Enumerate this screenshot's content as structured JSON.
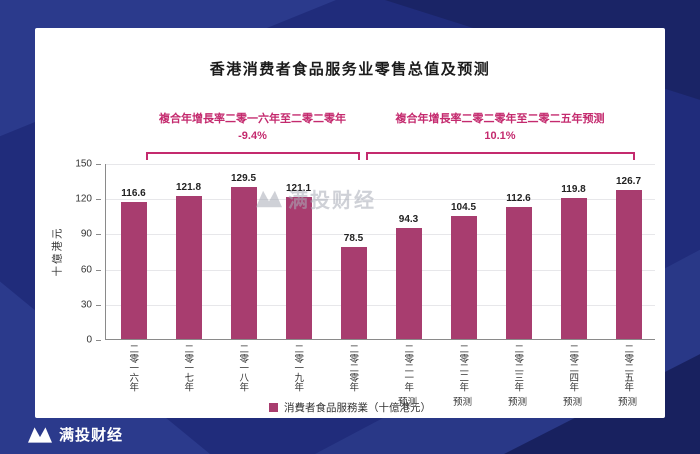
{
  "page": {
    "background_color": "#202c7b",
    "card_color": "#ffffff"
  },
  "brand": {
    "name": "满投财经",
    "watermark_text": "满投财经"
  },
  "chart_data": {
    "type": "bar",
    "title": "香港消费者食品服务业零售总值及预测",
    "ylabel": "十億港元",
    "ylim": [
      0,
      150
    ],
    "yticks": [
      150,
      120,
      90,
      60,
      30,
      0
    ],
    "categories": [
      {
        "year": "二零一六年",
        "sub": ""
      },
      {
        "year": "二零一七年",
        "sub": ""
      },
      {
        "year": "二零一八年",
        "sub": ""
      },
      {
        "year": "二零一九年",
        "sub": ""
      },
      {
        "year": "二零二零年",
        "sub": ""
      },
      {
        "year": "二零二一年",
        "sub": "预测"
      },
      {
        "year": "二零二二年",
        "sub": "预测"
      },
      {
        "year": "二零二三年",
        "sub": "预测"
      },
      {
        "year": "二零二四年",
        "sub": "预测"
      },
      {
        "year": "二零二五年",
        "sub": "预测"
      }
    ],
    "values": [
      116.6,
      121.8,
      129.5,
      121.1,
      78.5,
      94.3,
      104.5,
      112.6,
      119.8,
      126.7
    ],
    "bar_color": "#a83d6f",
    "annotation_color": "#c42a6e",
    "legend": "消費者食品服務業（十億港元）",
    "legend_position": "bottom",
    "grid": true,
    "annotations": [
      {
        "text": "複合年增長率二零一六年至二零二零年",
        "value": "-9.4%",
        "span_start": 0,
        "span_end": 4
      },
      {
        "text": "複合年增長率二零二零年至二零二五年预测",
        "value": "10.1%",
        "span_start": 4,
        "span_end": 9
      }
    ]
  }
}
